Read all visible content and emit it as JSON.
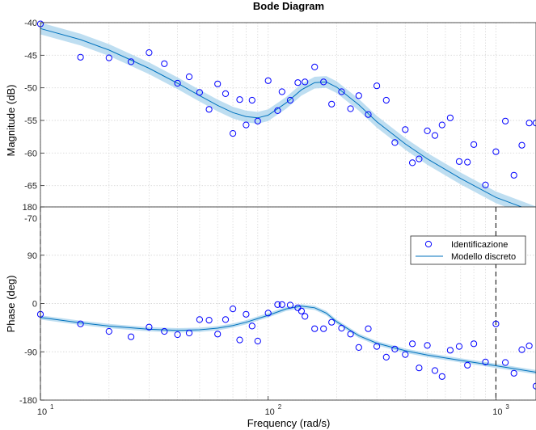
{
  "figure": {
    "title": "Bode Diagram",
    "xlabel": "Frequency  (rad/s)",
    "colors": {
      "identification": "#0000ff",
      "model": "#0072bd",
      "band": "#a8d3ec",
      "grid": "#d9d9d9",
      "frame": "#262626",
      "vertical_marker": "#000000"
    }
  },
  "chart_data": [
    {
      "type": "scatter",
      "panel": "magnitude",
      "ylabel": "Magnitude (dB)",
      "xscale": "log",
      "xlim": [
        10,
        1500
      ],
      "ylim": [
        -70,
        -40
      ],
      "yticks": [
        -70,
        -65,
        -60,
        -55,
        -50,
        -45,
        -40
      ],
      "grid": true,
      "series": [
        {
          "name": "Identificazione",
          "marker": "circle",
          "x": [
            10,
            15,
            20,
            25,
            30,
            35,
            40,
            45,
            50,
            55,
            60,
            65,
            70,
            75,
            80,
            85,
            90,
            100,
            110,
            115,
            125,
            135,
            145,
            160,
            175,
            190,
            210,
            230,
            250,
            275,
            300,
            330,
            360,
            400,
            430,
            460,
            500,
            540,
            580,
            630,
            690,
            750,
            800,
            900,
            1000,
            1100,
            1200,
            1300,
            1400,
            1500
          ],
          "y": [
            -40.2,
            -45.3,
            -45.4,
            -46.0,
            -44.6,
            -46.3,
            -49.3,
            -48.3,
            -50.7,
            -53.3,
            -49.4,
            -50.9,
            -57.0,
            -51.8,
            -55.7,
            -51.9,
            -55.1,
            -48.9,
            -53.5,
            -50.6,
            -51.9,
            -49.2,
            -49.1,
            -46.8,
            -49.1,
            -52.5,
            -50.6,
            -53.2,
            -51.2,
            -54.1,
            -49.7,
            -51.9,
            -58.4,
            -56.4,
            -61.5,
            -60.9,
            -56.6,
            -57.3,
            -55.7,
            -54.6,
            -61.3,
            -61.4,
            -58.7,
            -64.9,
            -59.8,
            -55.1,
            -63.4,
            -58.8,
            -55.4,
            -55.4
          ]
        },
        {
          "name": "Modello discreto",
          "style": "line",
          "x": [
            10,
            15,
            20,
            30,
            40,
            50,
            60,
            70,
            80,
            90,
            100,
            120,
            140,
            160,
            180,
            200,
            250,
            300,
            400,
            500,
            700,
            1000,
            1500
          ],
          "y": [
            -40.9,
            -42.6,
            -44.2,
            -47.0,
            -49.3,
            -51.2,
            -52.7,
            -53.8,
            -54.4,
            -54.6,
            -54.2,
            -52.3,
            -50.3,
            -49.2,
            -49.1,
            -49.9,
            -52.6,
            -55.2,
            -58.6,
            -60.9,
            -63.9,
            -66.8,
            -69.1
          ],
          "band_halfwidth": 0.9
        }
      ]
    },
    {
      "type": "scatter",
      "panel": "phase",
      "ylabel": "Phase (deg)",
      "xscale": "log",
      "xlim": [
        10,
        1500
      ],
      "ylim": [
        -180,
        180
      ],
      "yticks": [
        -180,
        -90,
        0,
        90,
        180
      ],
      "xticks": [
        "10",
        "10",
        "10"
      ],
      "xtick_exponents": [
        "1",
        "2",
        "3"
      ],
      "xtick_values": [
        10,
        100,
        1000
      ],
      "grid": true,
      "vertical_markers": [
        10,
        1000
      ],
      "legend": "top-right",
      "series": [
        {
          "name": "Identificazione",
          "marker": "circle",
          "x": [
            10,
            15,
            20,
            25,
            30,
            35,
            40,
            45,
            50,
            55,
            60,
            65,
            70,
            75,
            80,
            85,
            90,
            100,
            110,
            115,
            125,
            135,
            140,
            145,
            160,
            175,
            190,
            210,
            230,
            250,
            275,
            300,
            330,
            360,
            400,
            430,
            460,
            500,
            540,
            580,
            630,
            690,
            750,
            800,
            900,
            1000,
            1100,
            1200,
            1300,
            1400,
            1500
          ],
          "y": [
            -20,
            -38,
            -52,
            -62,
            -44,
            -52,
            -58,
            -55,
            -30,
            -31,
            -57,
            -30,
            -10,
            -68,
            -20,
            -42,
            -70,
            -18,
            -2,
            -2,
            -3,
            -8,
            -14,
            -24,
            -47,
            -47,
            -35,
            -46,
            -57,
            -82,
            -47,
            -80,
            -100,
            -85,
            -95,
            -75,
            -120,
            -78,
            -125,
            -136,
            -87,
            -80,
            -115,
            -75,
            -109,
            -38,
            -110,
            -130,
            -86,
            -79,
            -154
          ]
        },
        {
          "name": "Modello discreto",
          "style": "line",
          "x": [
            10,
            15,
            20,
            30,
            40,
            50,
            60,
            70,
            80,
            90,
            100,
            120,
            140,
            160,
            180,
            200,
            250,
            300,
            400,
            500,
            700,
            1000,
            1500
          ],
          "y": [
            -26,
            -36,
            -42,
            -48,
            -50,
            -49,
            -46,
            -41,
            -35,
            -28,
            -22,
            -10,
            -5,
            -8,
            -18,
            -34,
            -60,
            -74,
            -88,
            -96,
            -106,
            -116,
            -128
          ],
          "band_halfwidth": 4
        }
      ]
    }
  ]
}
